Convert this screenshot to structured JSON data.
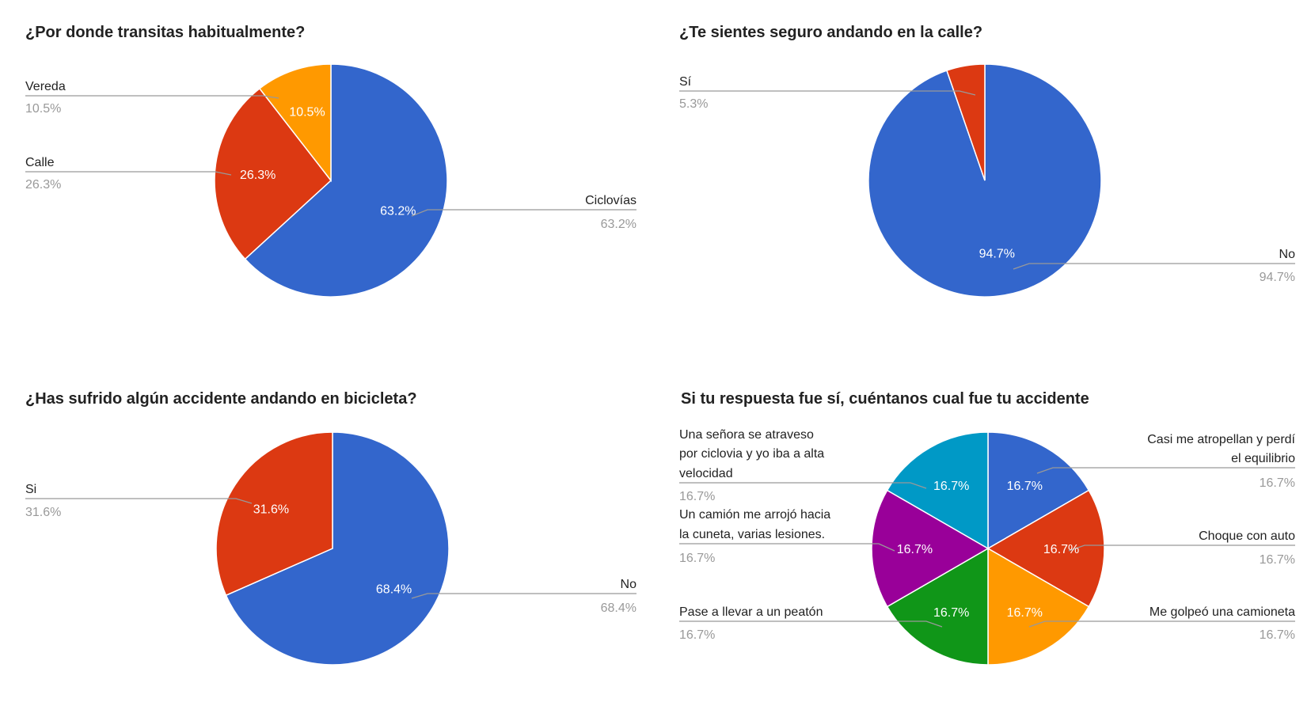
{
  "chart_data": [
    {
      "type": "pie",
      "title": "¿Por donde transitas habitualmente?",
      "slices": [
        {
          "label": "Ciclovías",
          "value": 63.2,
          "display": "63.2%",
          "color": "#3366cc"
        },
        {
          "label": "Calle",
          "value": 26.3,
          "display": "26.3%",
          "color": "#dc3912"
        },
        {
          "label": "Vereda",
          "value": 10.5,
          "display": "10.5%",
          "color": "#ff9900"
        }
      ]
    },
    {
      "type": "pie",
      "title": "¿Te sientes seguro andando en la calle?",
      "slices": [
        {
          "label": "No",
          "value": 94.7,
          "display": "94.7%",
          "color": "#3366cc"
        },
        {
          "label": "Sí",
          "value": 5.3,
          "display": "5.3%",
          "color": "#dc3912"
        }
      ]
    },
    {
      "type": "pie",
      "title": "¿Has sufrido algún accidente andando en bicicleta?",
      "slices": [
        {
          "label": "No",
          "value": 68.4,
          "display": "68.4%",
          "color": "#3366cc"
        },
        {
          "label": "Si",
          "value": 31.6,
          "display": "31.6%",
          "color": "#dc3912"
        }
      ]
    },
    {
      "type": "pie",
      "title": "Si tu respuesta fue sí, cuéntanos cual fue tu accidente",
      "slices": [
        {
          "label": "Casi me atropellan y perdí el equilibrio",
          "label_lines": [
            "Casi me atropellan y perdí",
            "el equilibrio"
          ],
          "value": 16.7,
          "display": "16.7%",
          "color": "#3366cc"
        },
        {
          "label": "Choque con auto",
          "label_lines": [
            "Choque con auto"
          ],
          "value": 16.7,
          "display": "16.7%",
          "color": "#dc3912"
        },
        {
          "label": "Me golpeó una camioneta",
          "label_lines": [
            "Me golpeó una camioneta"
          ],
          "value": 16.7,
          "display": "16.7%",
          "color": "#ff9900"
        },
        {
          "label": "Pase a llevar a un peatón",
          "label_lines": [
            "Pase a llevar a un peatón"
          ],
          "value": 16.7,
          "display": "16.7%",
          "color": "#109618"
        },
        {
          "label": "Un camión me arrojó hacia la cuneta, varias lesiones.",
          "label_lines": [
            "Un camión me arrojó hacia",
            "la cuneta, varias lesiones."
          ],
          "value": 16.7,
          "display": "16.7%",
          "color": "#990099"
        },
        {
          "label": "Una señora se atraveso por ciclovia y yo iba a alta velocidad",
          "label_lines": [
            "Una señora se atraveso",
            "por ciclovia y yo iba a alta",
            "velocidad"
          ],
          "value": 16.7,
          "display": "16.7%",
          "color": "#0099c6"
        }
      ]
    }
  ]
}
